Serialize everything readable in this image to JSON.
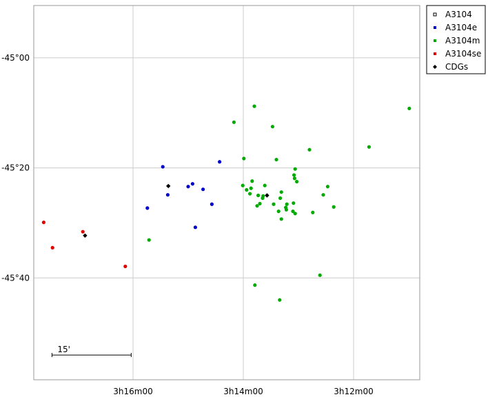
{
  "chart_data": {
    "type": "scatter",
    "title": "",
    "xlabel": "",
    "ylabel": "",
    "x_unit": "RA (minutes of time, 3h00m = 0)",
    "y_unit": "Dec (arcminutes relative to -45°00')",
    "xlim": [
      17.8,
      10.8
    ],
    "ylim": [
      -58.5,
      9.5
    ],
    "grid": true,
    "legend_position": "top-right outside",
    "x_ticks": [
      {
        "value": 16.0,
        "label": "3h16m00"
      },
      {
        "value": 14.0,
        "label": "3h14m00"
      },
      {
        "value": 12.0,
        "label": "3h12m00"
      }
    ],
    "y_ticks": [
      {
        "value": 0,
        "label": "-45°00"
      },
      {
        "value": -20,
        "label": "-45°20"
      },
      {
        "value": -40,
        "label": "-45°40"
      }
    ],
    "scale_bar": {
      "label": "15'",
      "length": 15
    },
    "series": [
      {
        "name": "A3104",
        "color": "#000000",
        "marker": "open-square",
        "points": []
      },
      {
        "name": "A3104e",
        "color": "#0000cc",
        "marker": "dot",
        "points": [
          [
            15.46,
            -19.8
          ],
          [
            15.37,
            -24.9
          ],
          [
            15.0,
            -23.4
          ],
          [
            14.92,
            -22.9
          ],
          [
            14.73,
            -23.9
          ],
          [
            14.57,
            -26.6
          ],
          [
            14.43,
            -18.9
          ],
          [
            15.74,
            -27.3
          ],
          [
            14.87,
            -30.8
          ]
        ]
      },
      {
        "name": "A3104m",
        "color": "#00aa00",
        "marker": "dot",
        "points": [
          [
            13.8,
            -8.8
          ],
          [
            10.99,
            -9.2
          ],
          [
            14.17,
            -11.7
          ],
          [
            13.47,
            -12.5
          ],
          [
            13.99,
            -18.3
          ],
          [
            12.8,
            -16.7
          ],
          [
            11.72,
            -16.2
          ],
          [
            13.4,
            -18.5
          ],
          [
            13.31,
            -29.3
          ],
          [
            13.06,
            -20.2
          ],
          [
            13.08,
            -21.3
          ],
          [
            13.07,
            -21.9
          ],
          [
            13.03,
            -22.5
          ],
          [
            13.84,
            -22.4
          ],
          [
            13.61,
            -23.2
          ],
          [
            13.86,
            -23.7
          ],
          [
            13.88,
            -24.7
          ],
          [
            14.01,
            -23.2
          ],
          [
            13.94,
            -24.0
          ],
          [
            12.47,
            -23.4
          ],
          [
            13.31,
            -24.4
          ],
          [
            13.73,
            -25.0
          ],
          [
            13.64,
            -25.1
          ],
          [
            13.65,
            -25.5
          ],
          [
            13.33,
            -25.5
          ],
          [
            13.09,
            -26.4
          ],
          [
            13.21,
            -26.6
          ],
          [
            13.23,
            -27.2
          ],
          [
            13.22,
            -27.6
          ],
          [
            13.36,
            -27.9
          ],
          [
            13.1,
            -27.9
          ],
          [
            13.06,
            -28.3
          ],
          [
            12.74,
            -28.1
          ],
          [
            12.55,
            -24.9
          ],
          [
            12.36,
            -27.1
          ],
          [
            13.75,
            -26.9
          ],
          [
            13.45,
            -26.6
          ],
          [
            13.7,
            -26.5
          ],
          [
            15.71,
            -33.1
          ],
          [
            13.79,
            -41.3
          ],
          [
            12.61,
            -39.5
          ],
          [
            13.34,
            -44.0
          ]
        ]
      },
      {
        "name": "A3104se",
        "color": "#dd0000",
        "marker": "dot",
        "points": [
          [
            17.62,
            -29.9
          ],
          [
            17.46,
            -34.5
          ],
          [
            16.91,
            -31.6
          ],
          [
            16.14,
            -37.9
          ]
        ]
      },
      {
        "name": "CDGs",
        "color": "#000000",
        "marker": "diamond",
        "points": [
          [
            15.36,
            -23.3
          ],
          [
            13.57,
            -25.0
          ],
          [
            16.87,
            -32.3
          ]
        ]
      }
    ]
  }
}
